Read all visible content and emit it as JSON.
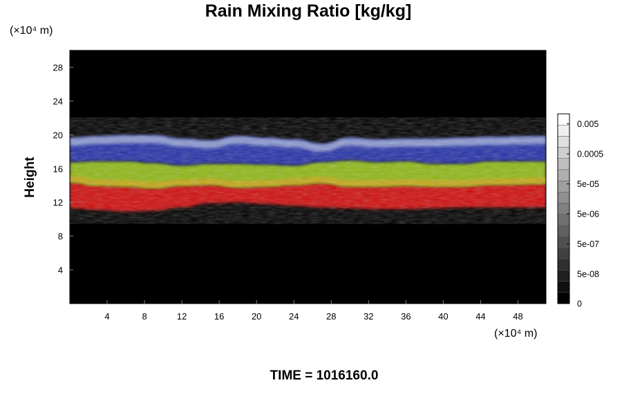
{
  "chart_data": {
    "type": "heatmap",
    "title": "Rain Mixing Ratio [kg/kg]",
    "ylabel": "Height",
    "x_unit_label": "(×10⁴ m)",
    "y_unit_label": "(×10⁴ m)",
    "time_label": "TIME = 1016160.0",
    "xlim": [
      0,
      51
    ],
    "ylim": [
      0,
      30
    ],
    "x_ticks": [
      "4",
      "8",
      "12",
      "16",
      "20",
      "24",
      "28",
      "32",
      "36",
      "40",
      "44",
      "48"
    ],
    "y_ticks": [
      "4",
      "8",
      "12",
      "16",
      "20",
      "24",
      "28"
    ],
    "background": "#000000",
    "colorbar": {
      "labels": [
        "0.005",
        "0.0005",
        "5e-05",
        "5e-06",
        "5e-07",
        "5e-08",
        "0"
      ],
      "levels": 17,
      "colors": [
        "#000000",
        "#ffffff"
      ]
    },
    "layers": [
      {
        "name": "red",
        "color": "#d01010",
        "bottom_km": [
          11.3,
          11.1,
          10.9,
          11.0,
          11.4,
          11.9,
          12.0,
          11.8,
          11.6,
          11.4,
          11.3,
          11.2,
          11.2,
          11.3,
          11.4,
          11.4,
          11.4
        ],
        "top_km": [
          14.4,
          14.0,
          13.9,
          13.7,
          14.0,
          14.1,
          13.8,
          13.9,
          14.1,
          14.3,
          13.9,
          13.9,
          14.0,
          13.9,
          13.9,
          14.1,
          14.2
        ]
      },
      {
        "name": "green",
        "color": "#8fb814",
        "top_km": [
          16.8,
          16.9,
          16.9,
          16.7,
          16.4,
          16.6,
          16.6,
          16.5,
          16.4,
          16.8,
          17.0,
          16.8,
          16.9,
          16.6,
          16.6,
          16.9,
          16.9
        ]
      },
      {
        "name": "blue",
        "color": "#2530a8",
        "top_km": [
          19.6,
          19.8,
          19.9,
          19.9,
          19.5,
          19.3,
          19.8,
          19.6,
          19.4,
          18.9,
          19.6,
          19.4,
          19.5,
          19.5,
          19.6,
          19.7,
          19.8
        ]
      }
    ],
    "layer_x": [
      0,
      3,
      6,
      9,
      12,
      15,
      18,
      21,
      24,
      27,
      30,
      33,
      36,
      39,
      42,
      45,
      51
    ]
  }
}
